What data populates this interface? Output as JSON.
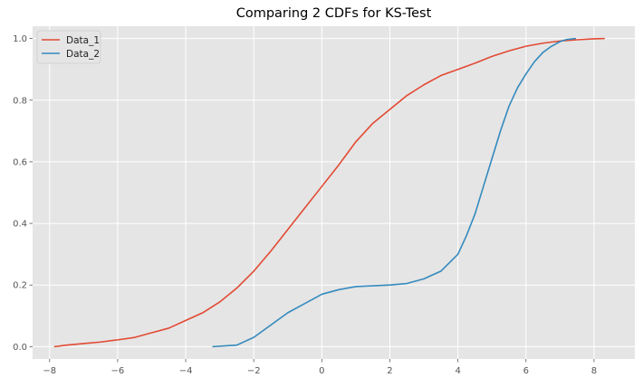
{
  "chart_data": {
    "type": "line",
    "title": "Comparing 2 CDFs for KS-Test",
    "xlabel": "",
    "ylabel": "",
    "xlim": [
      -8.5,
      9.2
    ],
    "ylim": [
      -0.04,
      1.04
    ],
    "xticks": [
      -8,
      -6,
      -4,
      -2,
      0,
      2,
      4,
      6,
      8
    ],
    "xtick_labels": [
      "−8",
      "−6",
      "−4",
      "−2",
      "0",
      "2",
      "4",
      "6",
      "8"
    ],
    "yticks": [
      0.0,
      0.2,
      0.4,
      0.6,
      0.8,
      1.0
    ],
    "ytick_labels": [
      "0.0",
      "0.2",
      "0.4",
      "0.6",
      "0.8",
      "1.0"
    ],
    "grid": true,
    "legend_position": "top-left",
    "background": "#e5e5e5",
    "series": [
      {
        "name": "Data_1",
        "color": "#e24a33",
        "x": [
          -7.85,
          -7.5,
          -7.0,
          -6.5,
          -6.0,
          -5.5,
          -5.0,
          -4.5,
          -4.0,
          -3.5,
          -3.0,
          -2.5,
          -2.0,
          -1.5,
          -1.0,
          -0.5,
          0.0,
          0.5,
          1.0,
          1.5,
          2.0,
          2.5,
          3.0,
          3.5,
          4.0,
          4.5,
          5.0,
          5.5,
          6.0,
          6.5,
          7.0,
          7.5,
          8.0,
          8.3
        ],
        "y": [
          0.0,
          0.005,
          0.01,
          0.015,
          0.022,
          0.03,
          0.045,
          0.06,
          0.085,
          0.11,
          0.145,
          0.19,
          0.245,
          0.31,
          0.38,
          0.45,
          0.52,
          0.59,
          0.665,
          0.725,
          0.77,
          0.815,
          0.85,
          0.88,
          0.9,
          0.92,
          0.942,
          0.96,
          0.975,
          0.985,
          0.992,
          0.996,
          0.999,
          1.0
        ]
      },
      {
        "name": "Data_2",
        "color": "#348abd",
        "x": [
          -3.2,
          -2.5,
          -2.0,
          -1.5,
          -1.0,
          -0.5,
          0.0,
          0.5,
          1.0,
          2.0,
          2.5,
          3.0,
          3.5,
          4.0,
          4.25,
          4.5,
          4.75,
          5.0,
          5.25,
          5.5,
          5.75,
          6.0,
          6.25,
          6.5,
          6.75,
          7.0,
          7.2,
          7.45
        ],
        "y": [
          0.0,
          0.005,
          0.03,
          0.07,
          0.11,
          0.14,
          0.17,
          0.185,
          0.195,
          0.2,
          0.205,
          0.22,
          0.245,
          0.3,
          0.36,
          0.43,
          0.52,
          0.61,
          0.7,
          0.78,
          0.84,
          0.885,
          0.925,
          0.955,
          0.975,
          0.99,
          0.997,
          1.0
        ]
      }
    ]
  }
}
